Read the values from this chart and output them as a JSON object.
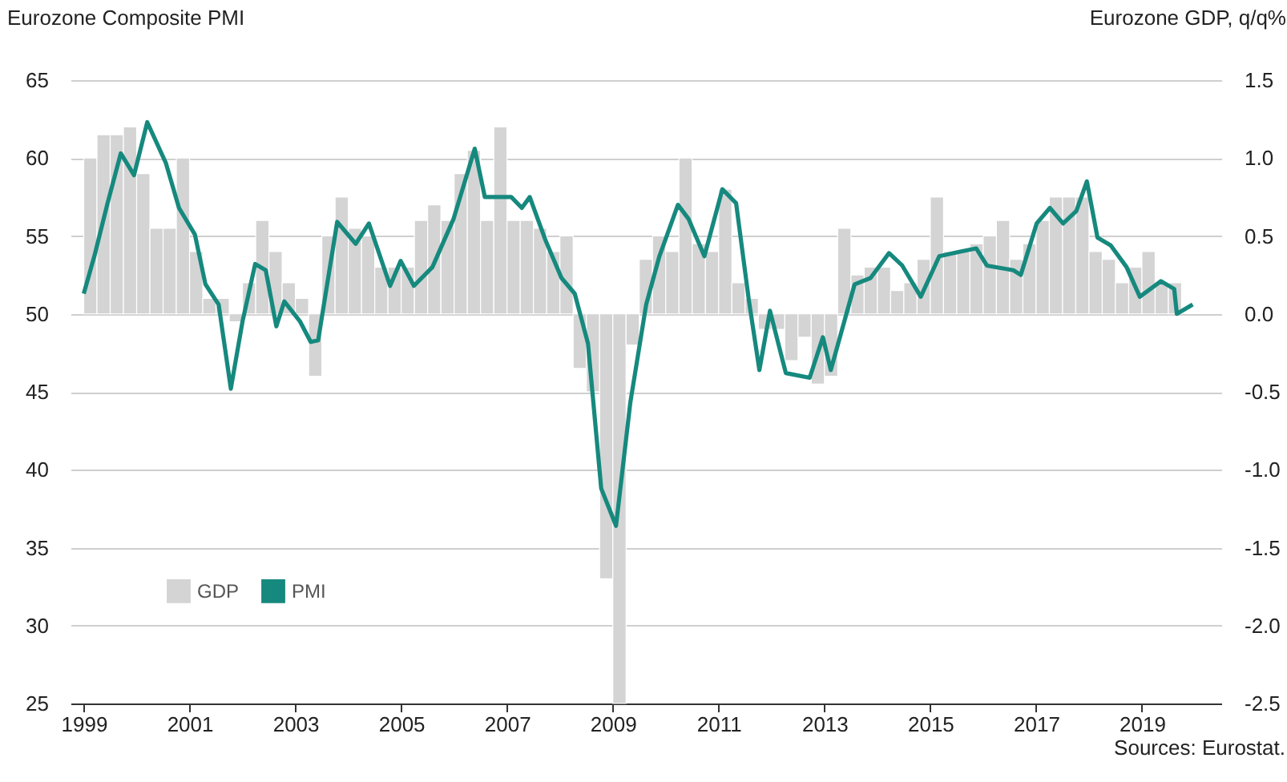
{
  "chart_data": {
    "type": "bar",
    "ylabel": "Eurozone Composite PMI",
    "y2label": "Eurozone GDP, q/q%",
    "annotations": [
      "Sources: Eurostat."
    ],
    "xlim": [
      1998.75,
      2020.5
    ],
    "xticks": [
      1999,
      2001,
      2003,
      2005,
      2007,
      2009,
      2011,
      2013,
      2015,
      2017,
      2019
    ],
    "ylim": [
      25,
      65
    ],
    "yticks": [
      25,
      30,
      35,
      40,
      45,
      50,
      55,
      60,
      65
    ],
    "y2lim": [
      -2.5,
      1.5
    ],
    "y2ticks": [
      {
        "value": -2.5,
        "label": "-2.5"
      },
      {
        "value": -2,
        "label": "-2.0"
      },
      {
        "value": -1.5,
        "label": "-1.5"
      },
      {
        "value": -1,
        "label": "-1.0"
      },
      {
        "value": -0.5,
        "label": "-0.5"
      },
      {
        "value": 0,
        "label": "0.0"
      },
      {
        "value": 0.5,
        "label": "0.5"
      },
      {
        "value": 1,
        "label": "1.0"
      },
      {
        "value": 1.5,
        "label": "1.5"
      }
    ],
    "grid": "y",
    "legend": "bottom left",
    "marker": "none",
    "line_style": "solid",
    "series": [
      {
        "name": "GDP",
        "axis": "y2",
        "color": "#d4d4d4",
        "x": [
          1999.125,
          1999.375,
          1999.625,
          1999.875,
          2000.125,
          2000.375,
          2000.625,
          2000.875,
          2001.125,
          2001.375,
          2001.625,
          2001.875,
          2002.125,
          2002.375,
          2002.625,
          2002.875,
          2003.125,
          2003.375,
          2003.625,
          2003.875,
          2004.125,
          2004.375,
          2004.625,
          2004.875,
          2005.125,
          2005.375,
          2005.625,
          2005.875,
          2006.125,
          2006.375,
          2006.625,
          2006.875,
          2007.125,
          2007.375,
          2007.625,
          2007.875,
          2008.125,
          2008.375,
          2008.625,
          2008.875,
          2009.125,
          2009.375,
          2009.625,
          2009.875,
          2010.125,
          2010.375,
          2010.625,
          2010.875,
          2011.125,
          2011.375,
          2011.625,
          2011.875,
          2012.125,
          2012.375,
          2012.625,
          2012.875,
          2013.125,
          2013.375,
          2013.625,
          2013.875,
          2014.125,
          2014.375,
          2014.625,
          2014.875,
          2015.125,
          2015.375,
          2015.625,
          2015.875,
          2016.125,
          2016.375,
          2016.625,
          2016.875,
          2017.125,
          2017.375,
          2017.625,
          2017.875,
          2018.125,
          2018.375,
          2018.625,
          2018.875,
          2019.125,
          2019.375,
          2019.625
        ],
        "values": [
          1.0,
          1.15,
          1.15,
          1.2,
          0.9,
          0.55,
          0.55,
          1.0,
          0.4,
          0.1,
          0.1,
          -0.05,
          0.2,
          0.6,
          0.4,
          0.2,
          0.1,
          -0.4,
          0.5,
          0.75,
          0.55,
          0.5,
          0.3,
          0.3,
          0.3,
          0.6,
          0.7,
          0.6,
          0.9,
          1.05,
          0.6,
          1.2,
          0.6,
          0.6,
          0.55,
          0.4,
          0.5,
          -0.35,
          -0.5,
          -1.7,
          -2.5,
          -0.2,
          0.35,
          0.5,
          0.4,
          1.0,
          0.45,
          0.4,
          0.8,
          0.2,
          0.1,
          -0.1,
          -0.1,
          -0.3,
          -0.15,
          -0.45,
          -0.4,
          0.55,
          0.25,
          0.3,
          0.3,
          0.15,
          0.2,
          0.35,
          0.75,
          0.4,
          0.4,
          0.45,
          0.5,
          0.6,
          0.35,
          0.45,
          0.6,
          0.75,
          0.75,
          0.75,
          0.4,
          0.35,
          0.2,
          0.3,
          0.4,
          0.2,
          0.2
        ]
      },
      {
        "name": "PMI",
        "type": "line",
        "color": "#16897e",
        "x": [
          1999.0,
          1999.2,
          1999.45,
          1999.7,
          1999.95,
          2000.2,
          2000.55,
          2000.8,
          2001.1,
          2001.3,
          2001.55,
          2001.78,
          2002.0,
          2002.24,
          2002.44,
          2002.64,
          2002.79,
          2003.09,
          2003.29,
          2003.43,
          2003.79,
          2004.14,
          2004.39,
          2004.79,
          2004.99,
          2005.24,
          2005.59,
          2005.99,
          2006.39,
          2006.58,
          2007.08,
          2007.28,
          2007.43,
          2007.73,
          2008.03,
          2008.28,
          2008.53,
          2008.78,
          2009.06,
          2009.33,
          2009.63,
          2009.88,
          2010.23,
          2010.43,
          2010.73,
          2011.07,
          2011.33,
          2011.57,
          2011.77,
          2011.97,
          2012.27,
          2012.72,
          2012.97,
          2013.12,
          2013.57,
          2013.87,
          2014.22,
          2014.47,
          2014.82,
          2015.17,
          2015.57,
          2015.87,
          2016.07,
          2016.57,
          2016.71,
          2017.01,
          2017.26,
          2017.51,
          2017.76,
          2017.96,
          2018.16,
          2018.41,
          2018.71,
          2018.96,
          2019.36,
          2019.61,
          2019.66,
          2019.96
        ],
        "values": [
          51.3,
          53.7,
          57.1,
          60.3,
          58.9,
          62.3,
          59.7,
          56.8,
          55.1,
          51.9,
          50.6,
          45.2,
          49.5,
          53.2,
          52.8,
          49.2,
          50.8,
          49.5,
          48.2,
          48.3,
          55.9,
          54.5,
          55.8,
          51.8,
          53.4,
          51.8,
          53.0,
          56.1,
          60.6,
          57.5,
          57.5,
          56.8,
          57.5,
          54.7,
          52.3,
          51.3,
          48.1,
          38.8,
          36.4,
          44.3,
          50.6,
          53.7,
          57.0,
          56.1,
          53.7,
          58.0,
          57.1,
          50.9,
          46.4,
          50.2,
          46.2,
          45.9,
          48.5,
          46.4,
          51.9,
          52.3,
          53.9,
          53.1,
          51.1,
          53.7,
          54.0,
          54.2,
          53.1,
          52.8,
          52.5,
          55.8,
          56.8,
          55.8,
          56.6,
          58.5,
          54.9,
          54.4,
          53.0,
          51.1,
          52.1,
          51.6,
          50.0,
          50.6
        ]
      }
    ]
  }
}
